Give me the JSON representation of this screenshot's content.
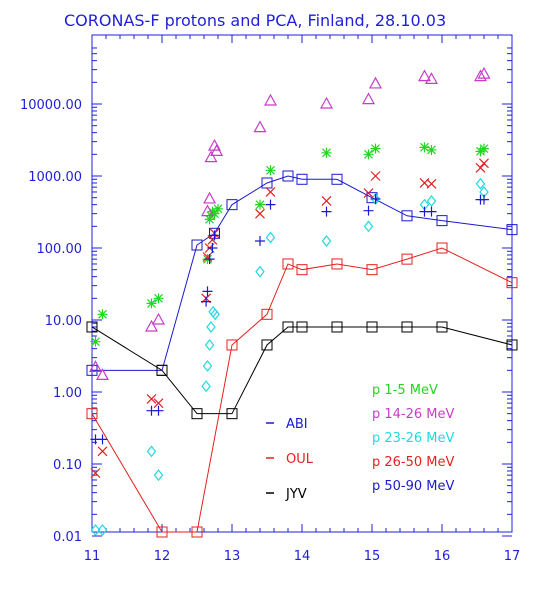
{
  "chart_data": {
    "type": "scatter",
    "title": "CORONAS-F protons and  PCA, Finland, 28.10.03",
    "xlabel": "",
    "ylabel": "",
    "xlim": [
      11,
      17
    ],
    "ylim": [
      0.01,
      60000
    ],
    "y_scale": "log",
    "grid": false,
    "x_ticks": [
      "11",
      "12",
      "13",
      "14",
      "15",
      "16",
      "17"
    ],
    "y_ticks": [
      "0.01",
      "0.10",
      "1.00",
      "10.00",
      "100.00",
      "1000.00",
      "10000.00"
    ],
    "station_legend": [
      {
        "name": "ABI",
        "color": "#1a1acd"
      },
      {
        "name": "OUL",
        "color": "#e62020"
      },
      {
        "name": "JYV",
        "color": "#000000"
      }
    ],
    "proton_legend": [
      {
        "name": "p  1-5 MeV",
        "color": "#22d522",
        "marker": "asterisk"
      },
      {
        "name": "p  14-26 MeV",
        "color": "#c83cc8",
        "marker": "triangle"
      },
      {
        "name": "p  23-26 MeV",
        "color": "#22d8e0",
        "marker": "diamond"
      },
      {
        "name": "p  26-50 MeV",
        "color": "#e62020",
        "marker": "x"
      },
      {
        "name": "p  50-90 MeV",
        "color": "#1a1acd",
        "marker": "plus"
      }
    ],
    "lines": [
      {
        "name": "ABI",
        "color": "#1a1acd",
        "x": [
          11.0,
          12.0,
          12.5,
          12.75,
          13.0,
          13.5,
          13.8,
          14.0,
          14.5,
          15.0,
          15.5,
          16.0,
          17.0
        ],
        "y": [
          2.0,
          2.0,
          110,
          160,
          400,
          800,
          1000,
          900,
          900,
          500,
          280,
          240,
          180
        ]
      },
      {
        "name": "OUL",
        "color": "#e62020",
        "x": [
          11.0,
          12.0,
          12.5,
          13.0,
          13.5,
          13.8,
          14.0,
          14.5,
          15.0,
          15.5,
          16.0,
          17.0
        ],
        "y": [
          0.5,
          0.01,
          0.01,
          4.5,
          12,
          60,
          50,
          60,
          50,
          70,
          100,
          33
        ]
      },
      {
        "name": "JYV",
        "color": "#000000",
        "x": [
          11.0,
          12.0,
          12.5,
          13.0,
          13.5,
          13.8,
          14.0,
          14.5,
          15.0,
          15.5,
          16.0,
          17.0
        ],
        "y": [
          8,
          2,
          0.5,
          0.5,
          4.5,
          8,
          8,
          8,
          8,
          8,
          8,
          4.5
        ]
      }
    ],
    "points": [
      {
        "name": "p  1-5 MeV",
        "color": "#22d522",
        "marker": "asterisk",
        "x": [
          11.05,
          11.15,
          11.85,
          11.95,
          12.65,
          12.68,
          12.7,
          12.72,
          12.75,
          12.8,
          13.4,
          13.55,
          14.35,
          14.95,
          15.05,
          15.75,
          15.85,
          16.55,
          16.6
        ],
        "y": [
          5,
          12,
          17,
          20,
          70,
          250,
          280,
          320,
          300,
          350,
          400,
          1200,
          2100,
          2000,
          2400,
          2500,
          2300,
          2200,
          2400
        ]
      },
      {
        "name": "p  14-26 MeV",
        "color": "#c83cc8",
        "marker": "triangle",
        "x": [
          11.05,
          11.15,
          11.85,
          11.95,
          12.65,
          12.68,
          12.7,
          12.75,
          12.78,
          13.4,
          13.55,
          14.35,
          14.95,
          15.05,
          15.75,
          15.85,
          16.55,
          16.6
        ],
        "y": [
          2.2,
          1.7,
          8,
          10,
          320,
          480,
          1800,
          2600,
          2200,
          4700,
          11000,
          10000,
          11500,
          19000,
          24000,
          22000,
          24000,
          26000
        ]
      },
      {
        "name": "p  23-26 MeV",
        "color": "#22d8e0",
        "marker": "diamond",
        "x": [
          11.05,
          11.15,
          11.85,
          11.95,
          12.63,
          12.65,
          12.68,
          12.7,
          12.73,
          12.76,
          13.4,
          13.55,
          14.35,
          14.95,
          15.05,
          15.75,
          15.85,
          16.55,
          16.6
        ],
        "y": [
          0.009,
          0.009,
          0.15,
          0.07,
          1.2,
          2.3,
          4.5,
          8,
          13,
          12,
          47,
          140,
          125,
          200,
          480,
          400,
          450,
          780,
          600
        ]
      },
      {
        "name": "p  26-50 MeV",
        "color": "#e62020",
        "marker": "x",
        "x": [
          11.05,
          11.15,
          11.85,
          11.95,
          12.63,
          12.65,
          12.68,
          12.72,
          12.75,
          13.4,
          13.55,
          14.35,
          14.95,
          15.05,
          15.75,
          15.85,
          16.55,
          16.6
        ],
        "y": [
          0.075,
          0.15,
          0.8,
          0.7,
          20,
          75,
          100,
          130,
          160,
          300,
          600,
          450,
          580,
          1000,
          800,
          780,
          1300,
          1500
        ]
      },
      {
        "name": "p  50-90 MeV",
        "color": "#1a1acd",
        "marker": "plus",
        "x": [
          11.05,
          11.15,
          11.85,
          11.95,
          12.63,
          12.65,
          12.68,
          12.72,
          12.75,
          13.4,
          13.55,
          14.35,
          14.95,
          15.05,
          15.75,
          15.85,
          16.55,
          16.6
        ],
        "y": [
          0.22,
          0.22,
          0.55,
          0.55,
          18,
          25,
          70,
          100,
          150,
          125,
          400,
          320,
          330,
          480,
          320,
          320,
          470,
          470
        ]
      }
    ]
  }
}
